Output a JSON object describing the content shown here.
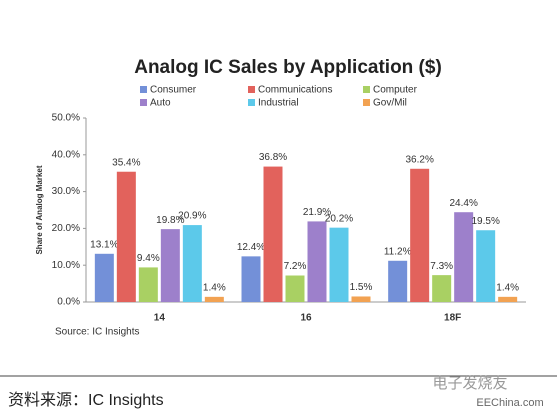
{
  "chart_data": {
    "type": "bar",
    "title": "Analog IC Sales by Application ($)",
    "y_label": "Share of Analog Market",
    "source": "Source:  IC Insights",
    "categories": [
      "14",
      "16",
      "18F"
    ],
    "series": [
      {
        "name": "Consumer",
        "color": "#7390d8",
        "values": [
          13.1,
          12.4,
          11.2
        ],
        "value_labels": [
          "13.1%",
          "12.4%",
          "11.2%"
        ]
      },
      {
        "name": "Communications",
        "color": "#e2625c",
        "values": [
          35.4,
          36.8,
          36.2
        ],
        "value_labels": [
          "35.4%",
          "36.8%",
          "36.2%"
        ]
      },
      {
        "name": "Computer",
        "color": "#a9d063",
        "values": [
          9.4,
          7.2,
          7.3
        ],
        "value_labels": [
          "9.4%",
          "7.2%",
          "7.3%"
        ]
      },
      {
        "name": "Auto",
        "color": "#9d80cb",
        "values": [
          19.8,
          21.9,
          24.4
        ],
        "value_labels": [
          "19.8%",
          "21.9%",
          "24.4%"
        ]
      },
      {
        "name": "Industrial",
        "color": "#5cc9ea",
        "values": [
          20.9,
          20.2,
          19.5
        ],
        "value_labels": [
          "20.9%",
          "20.2%",
          "19.5%"
        ]
      },
      {
        "name": "Gov/Mil",
        "color": "#f2a252",
        "values": [
          1.4,
          1.5,
          1.4
        ],
        "value_labels": [
          "1.4%",
          "1.5%",
          "1.4%"
        ]
      }
    ],
    "ylim": [
      0,
      50
    ],
    "yticks": [
      {
        "value": 0,
        "label": "0.0%"
      },
      {
        "value": 10,
        "label": "10.0%"
      },
      {
        "value": 20,
        "label": "20.0%"
      },
      {
        "value": 30,
        "label": "30.0%"
      },
      {
        "value": 40,
        "label": "40.0%"
      },
      {
        "value": 50,
        "label": "50.0%"
      }
    ],
    "grid": false
  },
  "footer": {
    "caption": "资料来源：IC Insights",
    "watermark": "电子发烧友",
    "site": "EEChina.com"
  }
}
